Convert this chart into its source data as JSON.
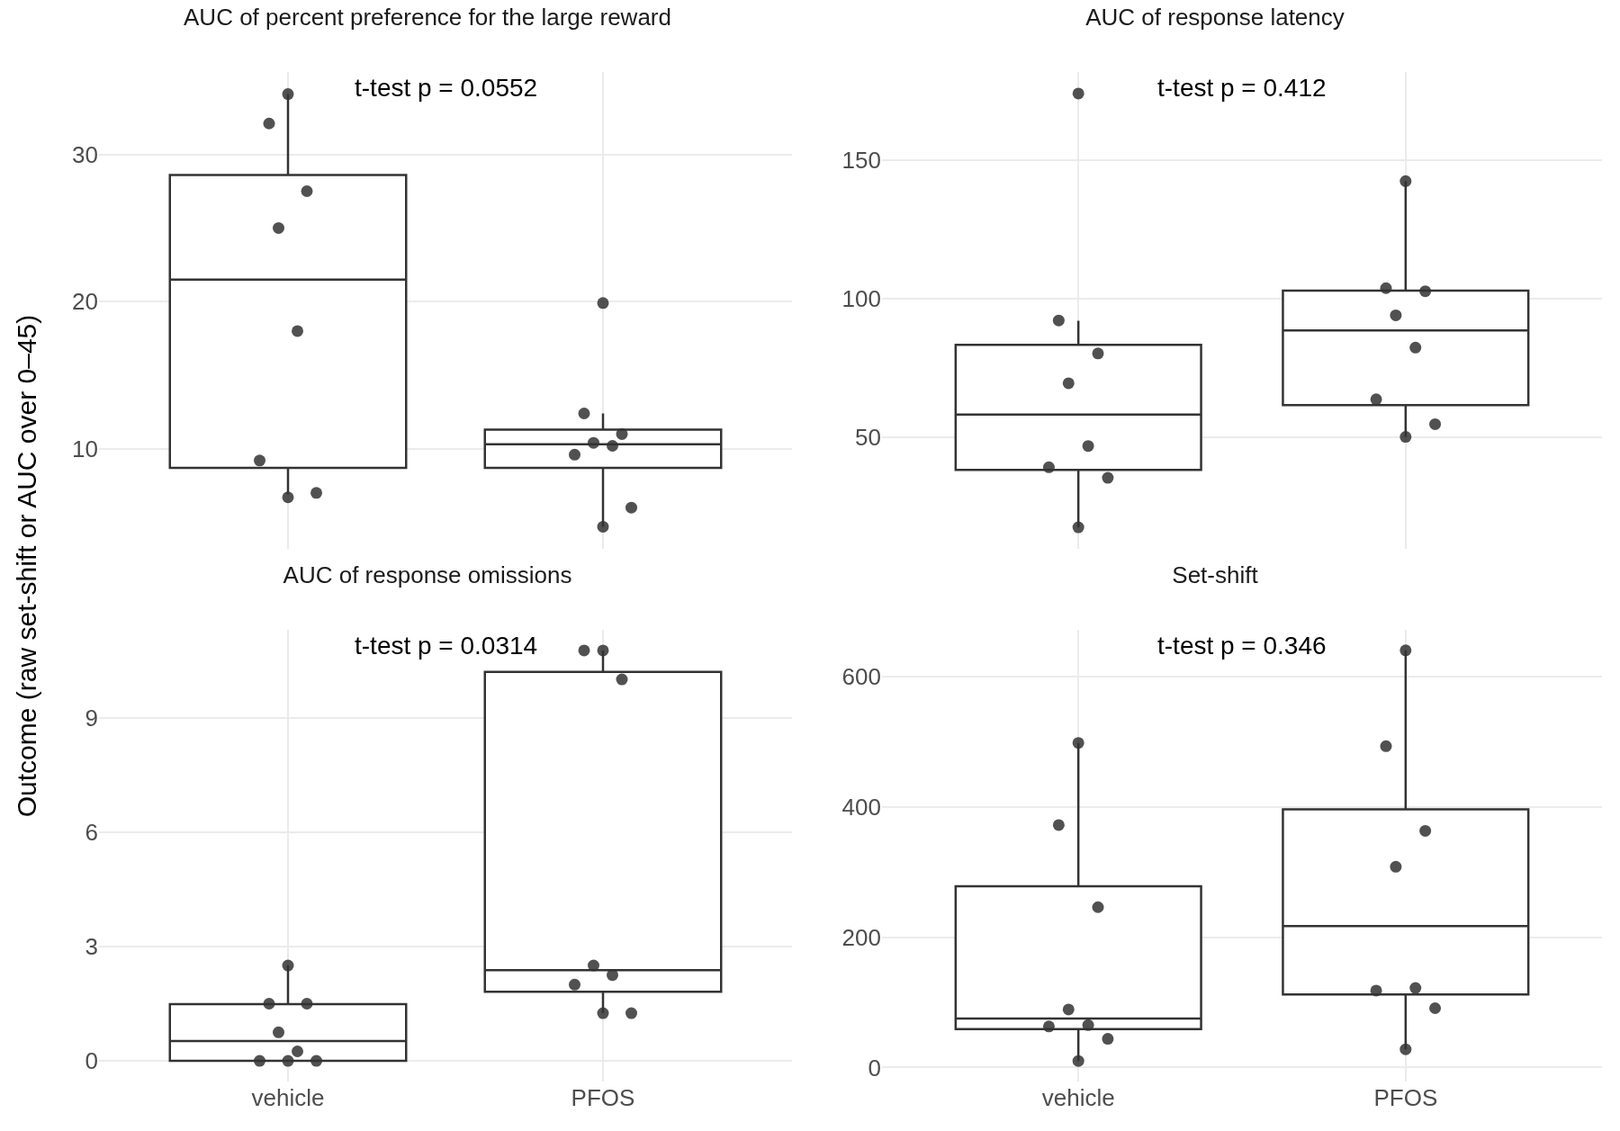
{
  "chart_data": [
    {
      "type": "box",
      "title": "AUC of percent preference for the large reward",
      "ylabel": "Outcome (raw set-shift or AUC over 0–45)",
      "annotations": [
        "t-test p = 0.0552"
      ],
      "categories": [
        "vehicle",
        "PFOS"
      ],
      "color": "#333333",
      "boxes": [
        {
          "low": 6.9,
          "q1": 8.7,
          "median": 21.5,
          "q3": 28.6,
          "high": 34.1
        },
        {
          "low": 4.7,
          "q1": 8.7,
          "median": 10.3,
          "q3": 11.3,
          "high": 12.4
        }
      ],
      "series": [
        {
          "type": "scatter",
          "color": "#333333",
          "x": [
            "vehicle",
            "vehicle",
            "vehicle",
            "vehicle",
            "vehicle",
            "vehicle",
            "vehicle",
            "vehicle",
            "PFOS",
            "PFOS",
            "PFOS",
            "PFOS",
            "PFOS",
            "PFOS",
            "PFOS",
            "PFOS"
          ],
          "values": [
            34.1,
            32.1,
            27.5,
            25.0,
            18.0,
            9.2,
            7.0,
            6.7,
            19.9,
            12.4,
            11.0,
            10.4,
            10.2,
            9.6,
            6.0,
            4.7
          ]
        }
      ],
      "marker": "circle",
      "ylim": [
        3.2,
        35.6
      ],
      "yticks": [
        10,
        20,
        30
      ],
      "grid": true,
      "tick_labels": "y"
    },
    {
      "type": "box",
      "title": "AUC of response latency",
      "annotations": [
        "t-test p = 0.412"
      ],
      "categories": [
        "vehicle",
        "PFOS"
      ],
      "color": "#333333",
      "boxes": [
        {
          "low": 17.3,
          "q1": 38.1,
          "median": 58.1,
          "q3": 83.3,
          "high": 92
        },
        {
          "low": 50,
          "q1": 61.5,
          "median": 88.5,
          "q3": 102.9,
          "high": 142.5
        }
      ],
      "series": [
        {
          "type": "scatter",
          "color": "#333333",
          "x": [
            "vehicle",
            "vehicle",
            "vehicle",
            "vehicle",
            "vehicle",
            "vehicle",
            "vehicle",
            "vehicle",
            "PFOS",
            "PFOS",
            "PFOS",
            "PFOS",
            "PFOS",
            "PFOS",
            "PFOS",
            "PFOS"
          ],
          "values": [
            174.2,
            92.1,
            80.2,
            69.4,
            46.7,
            39.0,
            35.2,
            17.3,
            142.5,
            103.8,
            102.7,
            94.0,
            82.3,
            63.6,
            54.6,
            50.0
          ]
        }
      ],
      "marker": "circle",
      "ylim": [
        9.5,
        182
      ],
      "yticks": [
        50,
        100,
        150
      ],
      "grid": true,
      "tick_labels": "y"
    },
    {
      "type": "box",
      "title": "AUC of response omissions",
      "annotations": [
        "t-test p = 0.0314"
      ],
      "categories": [
        "vehicle",
        "PFOS"
      ],
      "color": "#333333",
      "boxes": [
        {
          "low": 0,
          "q1": 0,
          "median": 0.52,
          "q3": 1.49,
          "high": 2.5
        },
        {
          "low": 1.26,
          "q1": 1.81,
          "median": 2.38,
          "q3": 10.2,
          "high": 10.76
        }
      ],
      "series": [
        {
          "type": "scatter",
          "color": "#333333",
          "x": [
            "vehicle",
            "vehicle",
            "vehicle",
            "vehicle",
            "vehicle",
            "vehicle",
            "vehicle",
            "vehicle",
            "PFOS",
            "PFOS",
            "PFOS",
            "PFOS",
            "PFOS",
            "PFOS",
            "PFOS",
            "PFOS"
          ],
          "values": [
            2.5,
            1.5,
            1.5,
            0.75,
            0.25,
            0,
            0,
            0,
            10.76,
            10.76,
            10.0,
            2.5,
            2.25,
            2.0,
            1.25,
            1.25
          ]
        }
      ],
      "marker": "circle",
      "ylim": [
        -0.54,
        11.3
      ],
      "yticks": [
        0,
        3,
        6,
        9
      ],
      "grid": true
    },
    {
      "type": "box",
      "title": "Set-shift",
      "annotations": [
        "t-test p = 0.346"
      ],
      "categories": [
        "vehicle",
        "PFOS"
      ],
      "color": "#333333",
      "boxes": [
        {
          "low": 10,
          "q1": 59,
          "median": 75,
          "q3": 278,
          "high": 498
        },
        {
          "low": 28,
          "q1": 112,
          "median": 217,
          "q3": 396,
          "high": 640
        }
      ],
      "series": [
        {
          "type": "scatter",
          "color": "#333333",
          "x": [
            "vehicle",
            "vehicle",
            "vehicle",
            "vehicle",
            "vehicle",
            "vehicle",
            "vehicle",
            "vehicle",
            "PFOS",
            "PFOS",
            "PFOS",
            "PFOS",
            "PFOS",
            "PFOS",
            "PFOS",
            "PFOS"
          ],
          "values": [
            498,
            372,
            246,
            89,
            65,
            63,
            44,
            10,
            640,
            493,
            363,
            308,
            122,
            118,
            91,
            28
          ]
        }
      ],
      "marker": "circle",
      "ylim": [
        -21.5,
        671.5
      ],
      "yticks": [
        0,
        200,
        400,
        600
      ],
      "grid": true
    }
  ]
}
